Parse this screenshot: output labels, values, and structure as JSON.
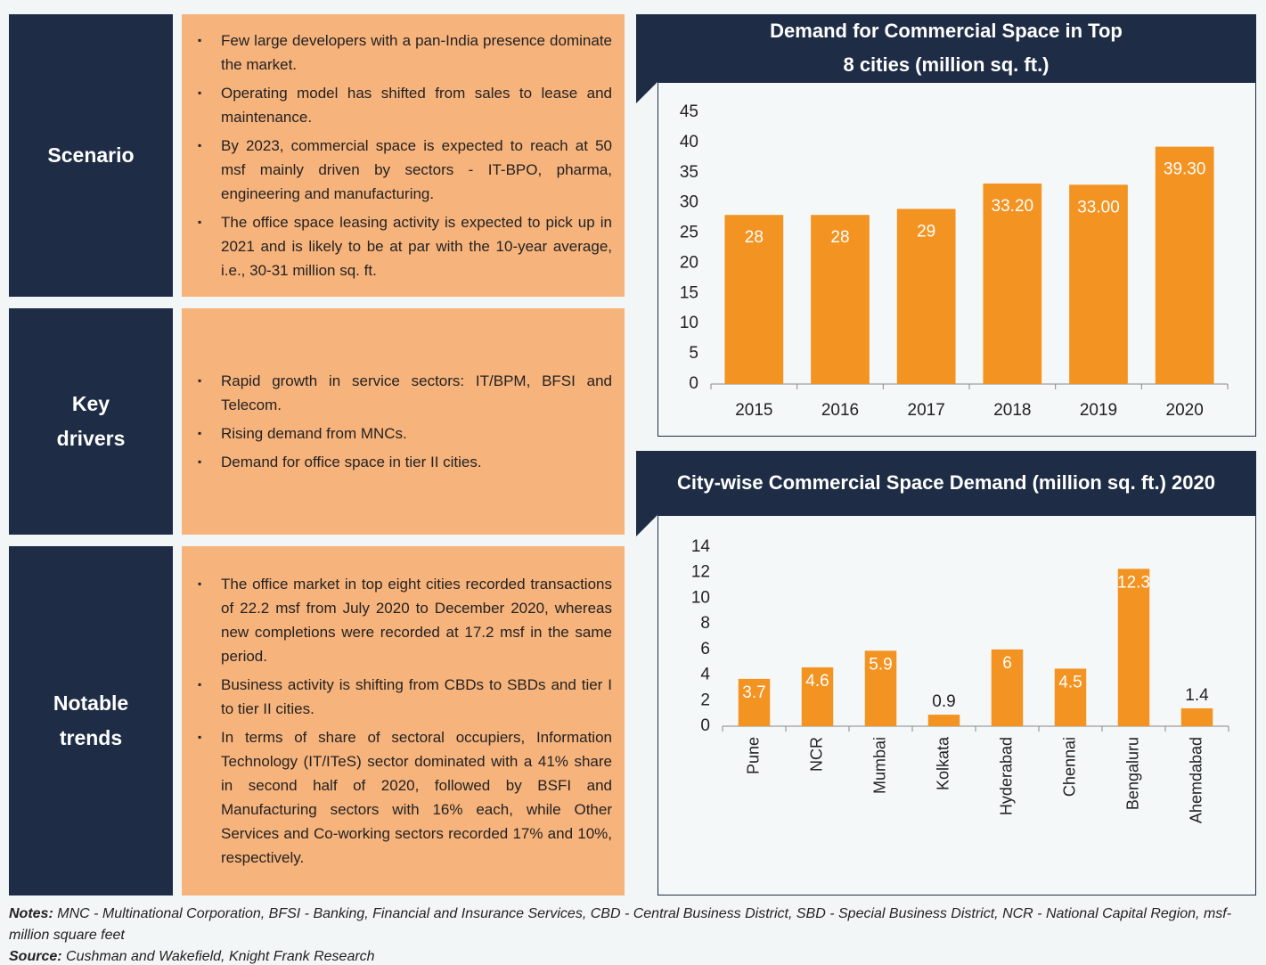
{
  "sections": [
    {
      "label": "Scenario",
      "bullets": [
        "Few large developers with a pan-India presence dominate the market.",
        "Operating model has shifted from sales to lease and maintenance.",
        "By 2023, commercial space is expected to reach at 50 msf mainly driven by sectors - IT-BPO, pharma, engineering and manufacturing.",
        "The office space leasing activity is expected to pick up in 2021 and is likely to be at par with the 10-year average, i.e., 30-31 million sq. ft."
      ]
    },
    {
      "label": "Key drivers",
      "bullets": [
        "Rapid growth in service sectors: IT/BPM, BFSI and Telecom.",
        "Rising demand from MNCs.",
        "Demand for office space in tier II cities."
      ]
    },
    {
      "label": "Notable trends",
      "bullets": [
        "The office market in top eight cities recorded transactions of 22.2 msf from July 2020 to December 2020, whereas new completions were recorded at 17.2 msf in the same period.",
        "Business activity is shifting from CBDs to SBDs and tier I to tier II cities.",
        "In terms of share of sectoral occupiers, Information Technology (IT/ITeS) sector dominated with a 41% share in second half of 2020, followed by BSFI and Manufacturing sectors with 16% each, while Other Services and Co-working sectors recorded 17% and 10%, respectively."
      ]
    }
  ],
  "chart_data": [
    {
      "type": "bar",
      "title": "Demand for Commercial Space in Top 8 cities (million sq. ft.)",
      "categories": [
        "2015",
        "2016",
        "2017",
        "2018",
        "2019",
        "2020"
      ],
      "values": [
        28,
        28,
        29,
        33.2,
        33,
        39.3
      ],
      "value_labels": [
        "28",
        "28",
        "29",
        "33.20",
        "33.00",
        "39.30"
      ],
      "color": "#f39321",
      "ylim": [
        0,
        45
      ],
      "yticks": [
        0,
        5,
        10,
        15,
        20,
        25,
        30,
        35,
        40,
        45
      ]
    },
    {
      "type": "bar",
      "title": "City-wise Commercial Space Demand (million sq. ft.) 2020",
      "categories": [
        "Pune",
        "NCR",
        "Mumbai",
        "Kolkata",
        "Hyderabad",
        "Chennai",
        "Bengaluru",
        "Ahemdabad"
      ],
      "values": [
        3.7,
        4.6,
        5.9,
        0.9,
        6,
        4.5,
        12.3,
        1.4
      ],
      "color": "#f39321",
      "ylim": [
        0,
        14
      ],
      "yticks": [
        0,
        2,
        4,
        6,
        8,
        10,
        12,
        14
      ]
    }
  ],
  "notes": {
    "label": "Notes:",
    "text": "MNC - Multinational Corporation, BFSI - Banking, Financial and Insurance Services, CBD - Central Business District, SBD - Special Business District, NCR - National Capital Region, msf- million square feet"
  },
  "source": {
    "label": "Source:",
    "text": "Cushman and Wakefield, Knight Frank Research"
  }
}
